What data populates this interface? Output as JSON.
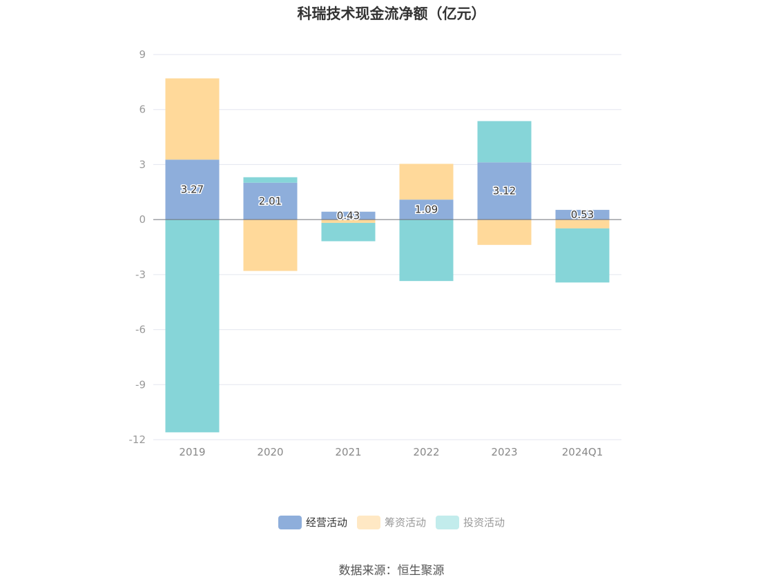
{
  "chart_data": {
    "type": "bar",
    "stacked": true,
    "title": "科瑞技术现金流净额（亿元）",
    "categories": [
      "2019",
      "2020",
      "2021",
      "2022",
      "2023",
      "2024Q1"
    ],
    "series": [
      {
        "name": "经营活动",
        "color": "#8eaedb",
        "values": [
          3.27,
          2.01,
          0.43,
          1.09,
          3.12,
          0.53
        ],
        "labels": [
          "3.27",
          "2.01",
          "0.43",
          "1.09",
          "3.12",
          "0.53"
        ]
      },
      {
        "name": "筹资活动",
        "color": "#ffd99a",
        "values": [
          4.43,
          -2.8,
          -0.18,
          1.95,
          -1.38,
          -0.48
        ]
      },
      {
        "name": "投资活动",
        "color": "#86d5d8",
        "values": [
          -11.6,
          0.3,
          -1.0,
          -3.35,
          2.25,
          -2.95
        ]
      }
    ],
    "yticks": [
      "9",
      "6",
      "3",
      "0",
      "-3",
      "-6",
      "-9",
      "-12"
    ],
    "ylim": [
      -12,
      9
    ],
    "legend_position": "bottom",
    "grid": true
  },
  "legend_colors": {
    "经营活动": "#8eaedb",
    "筹资活动": "#ffe8c4",
    "投资活动": "#c2ecec"
  },
  "source": "数据来源：恒生聚源"
}
